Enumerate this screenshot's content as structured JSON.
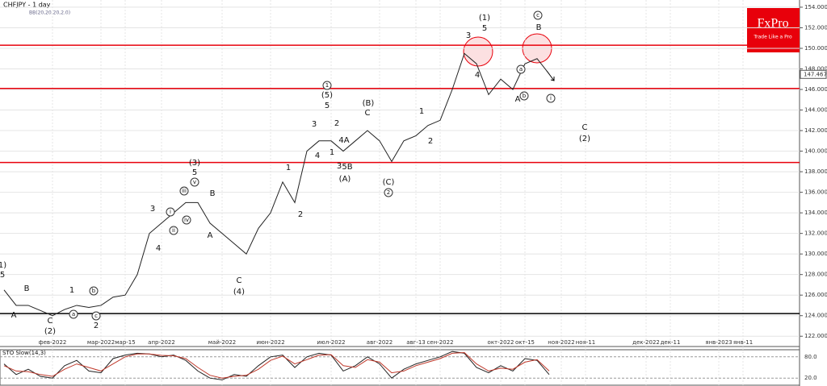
{
  "chart_data": {
    "type": "line",
    "title": "CHFJPY - 1 day",
    "subtitle": "BB(20,20,20,2.0)",
    "brand": {
      "name": "FxPro",
      "tagline": "Trade Like a Pro"
    },
    "categories": [
      "",
      "",
      "",
      "",
      "фев-2022",
      "",
      "",
      "",
      "мар-2022",
      "",
      "мар-15",
      "",
      "",
      "апр-2022",
      "",
      "",
      "",
      "",
      "май-2022",
      "",
      "",
      "",
      "июн-2022",
      "",
      "",
      "",
      "",
      "июл-2022",
      "",
      "",
      "",
      "авг-2022",
      "",
      "",
      "авг-13",
      "",
      "сен-2022",
      "",
      "",
      "",
      "",
      "окт-2022",
      "",
      "окт-15",
      "",
      "",
      "ноя-2022",
      "",
      "ноя-11",
      "",
      "",
      "",
      "",
      "дек-2022",
      "",
      "дек-11",
      "",
      "",
      "",
      "янв-2023",
      "",
      "янв-11",
      "",
      "",
      ""
    ],
    "series": [
      {
        "name": "CHFJPY",
        "color": "#222",
        "values": [
          126.5,
          125,
          125,
          124.5,
          124,
          124.6,
          125,
          124.8,
          125,
          125.8,
          126,
          128,
          132,
          133,
          134,
          135,
          135,
          133,
          132,
          131,
          130,
          132.5,
          134,
          137,
          135,
          140,
          141,
          141,
          140,
          141,
          142,
          141,
          139,
          141,
          141.5,
          142.5,
          143,
          146,
          149.5,
          148.5,
          145.5,
          147,
          146,
          148.5,
          149,
          147.5,
          null,
          null,
          null,
          null,
          null,
          null,
          null,
          null,
          null,
          null,
          null,
          null,
          null,
          null,
          null,
          null,
          null,
          null,
          null
        ]
      }
    ],
    "ylim": [
      121,
      154.7
    ],
    "yticks": [
      {
        "value": 122,
        "label": "122.000"
      },
      {
        "value": 124,
        "label": "124.000"
      },
      {
        "value": 126,
        "label": "126.000"
      },
      {
        "value": 128,
        "label": "128.000"
      },
      {
        "value": 130,
        "label": "130.000"
      },
      {
        "value": 132,
        "label": "132.000"
      },
      {
        "value": 134,
        "label": "134.000"
      },
      {
        "value": 136,
        "label": "136.000"
      },
      {
        "value": 138,
        "label": "138.000"
      },
      {
        "value": 140,
        "label": "140.000"
      },
      {
        "value": 142,
        "label": "142.000"
      },
      {
        "value": 144,
        "label": "144.000"
      },
      {
        "value": 146,
        "label": "146.000"
      },
      {
        "value": 148,
        "label": "148.000"
      },
      {
        "value": 150,
        "label": "150.000"
      },
      {
        "value": 152,
        "label": "152.000"
      },
      {
        "value": 154,
        "label": "154.000"
      }
    ],
    "current_price": {
      "value": 147.467,
      "label": "147.467"
    },
    "levels": [
      {
        "value": 150.3,
        "color": "#e8000b"
      },
      {
        "value": 146.1,
        "color": "#e8000b"
      },
      {
        "value": 138.9,
        "color": "#e8000b"
      },
      {
        "value": 124.2,
        "color": "#000"
      }
    ],
    "grid": true,
    "annotations": [
      "(1)",
      "5",
      "3",
      "4",
      "B",
      "c",
      "a",
      "b",
      "A",
      "i",
      "C",
      "(2)",
      "1",
      "(5)",
      "5",
      "(B)",
      "C",
      "3",
      "2",
      "1",
      "2",
      "4",
      "4A",
      "1",
      "3",
      "5B",
      "(A)",
      "(C)",
      "2",
      "1",
      "2",
      "(3)",
      "5",
      "v",
      "iii",
      "B",
      "i",
      "iv",
      "ii",
      "3",
      "4",
      "A",
      "C",
      "(4)",
      "1)",
      "5",
      "B",
      "1",
      "b",
      "A",
      "a",
      "C",
      "(2)",
      "c",
      "2"
    ],
    "oscillator": {
      "title": "STO Slow(14,3)",
      "ylim": [
        0,
        100
      ],
      "yticks": [
        {
          "value": 80,
          "label": "80.0"
        },
        {
          "value": 20,
          "label": "20.0"
        }
      ],
      "series": [
        {
          "name": "%K",
          "color": "#222",
          "values": [
            60,
            30,
            45,
            25,
            20,
            55,
            70,
            40,
            35,
            75,
            85,
            90,
            88,
            80,
            85,
            70,
            40,
            20,
            15,
            30,
            25,
            55,
            80,
            85,
            50,
            80,
            90,
            85,
            40,
            55,
            80,
            60,
            20,
            45,
            60,
            70,
            80,
            95,
            90,
            50,
            35,
            55,
            40,
            75,
            70,
            30,
            null,
            null,
            null,
            null,
            null,
            null,
            null,
            null,
            null,
            null,
            null,
            null,
            null,
            null,
            null,
            null,
            null,
            null,
            null
          ]
        },
        {
          "name": "%D",
          "color": "#c0392b",
          "values": [
            55,
            40,
            38,
            30,
            25,
            45,
            60,
            50,
            40,
            60,
            80,
            88,
            88,
            84,
            83,
            75,
            50,
            28,
            20,
            25,
            28,
            45,
            70,
            82,
            60,
            72,
            85,
            86,
            55,
            50,
            72,
            65,
            35,
            40,
            55,
            65,
            75,
            90,
            92,
            60,
            40,
            48,
            45,
            65,
            72,
            40,
            null,
            null,
            null,
            null,
            null,
            null,
            null,
            null,
            null,
            null,
            null,
            null,
            null,
            null,
            null,
            null,
            null,
            null,
            null
          ]
        }
      ]
    }
  }
}
